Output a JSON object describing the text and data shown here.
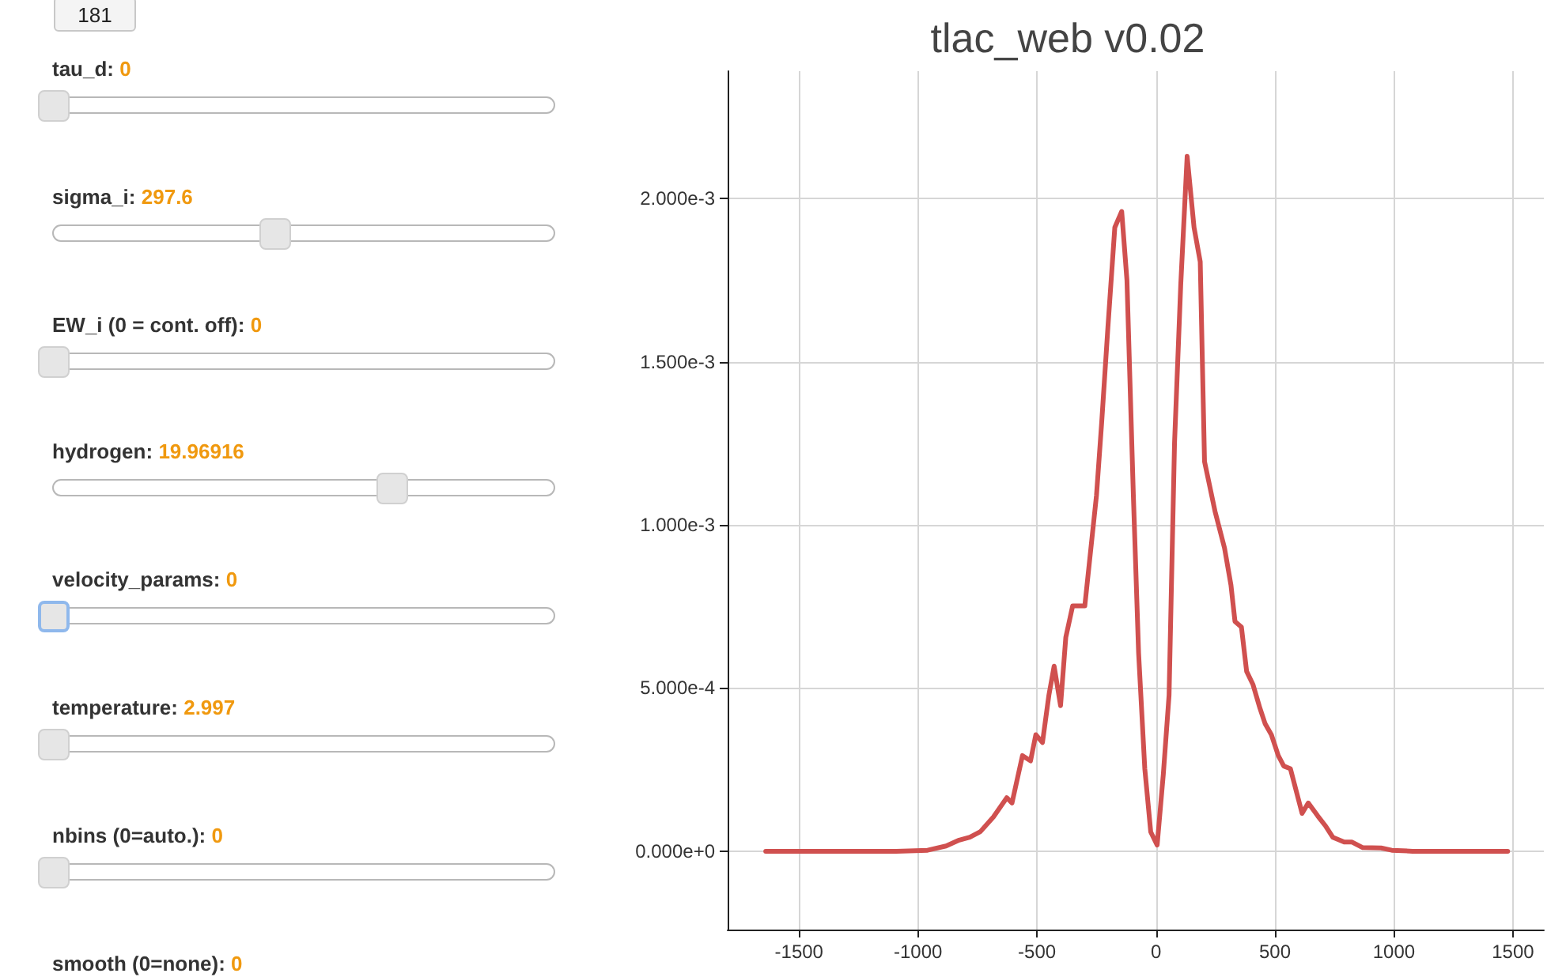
{
  "chart_data": [
    {
      "type": "other",
      "annotations": [
        "181",
        "tau_d:",
        "0",
        "sigma_i:",
        "297.6",
        "EW_i (0 = cont. off):",
        "0",
        "hydrogen:",
        "19.96916",
        "velocity_params:",
        "0",
        "temperature:",
        "2.997",
        "nbins (0=auto.):",
        "0",
        "smooth (0=none):",
        "0"
      ]
    },
    {
      "type": "line",
      "title": "tlac_web v0.02",
      "color": "#d0504f",
      "marker": "none",
      "grid": true,
      "x": [
        -1640,
        -1092,
        -960,
        -882,
        -827,
        -782,
        -738,
        -683,
        -627,
        -605,
        -561,
        -527,
        -505,
        -477,
        -450,
        -428,
        -401,
        -379,
        -350,
        -299,
        -250,
        -228,
        -202,
        -173,
        -144,
        -122,
        -95,
        -73,
        -47,
        -22,
        5,
        31,
        55,
        78,
        104,
        131,
        160,
        186,
        204,
        248,
        288,
        315,
        332,
        359,
        381,
        408,
        437,
        459,
        485,
        514,
        537,
        565,
        614,
        640,
        680,
        714,
        743,
        791,
        824,
        869,
        946,
        991,
        1079,
        1478
      ],
      "values": [
        0,
        0,
        3e-06,
        1.6e-05,
        3.4e-05,
        4.3e-05,
        6e-05,
        0.000105,
        0.000164,
        0.000148,
        0.000293,
        0.000277,
        0.000357,
        0.000333,
        0.000478,
        0.000567,
        0.000446,
        0.000655,
        0.000752,
        0.000752,
        0.00109,
        0.001315,
        0.001605,
        0.001911,
        0.00196,
        0.00175,
        0.00109,
        0.000607,
        0.000253,
        5.9e-05,
        1.9e-05,
        0.000237,
        0.000478,
        0.001251,
        0.001734,
        0.002129,
        0.001911,
        0.001806,
        0.001194,
        0.001042,
        0.000929,
        0.000816,
        0.000704,
        0.000687,
        0.000551,
        0.00051,
        0.000438,
        0.00039,
        0.000357,
        0.000293,
        0.000261,
        0.000253,
        0.000116,
        0.000148,
        0.000108,
        7.6e-05,
        4.3e-05,
        2.8e-05,
        2.8e-05,
        1.1e-05,
        1e-05,
        3e-06,
        0,
        0
      ],
      "xlim": [
        -1800,
        1630
      ],
      "xticks": [
        -1500,
        -1000,
        -500,
        0,
        500,
        1000,
        1500
      ],
      "ylim": [
        -0.00024,
        0.00239
      ],
      "yticks": [
        {
          "value": 0,
          "label": "0.000e+0"
        },
        {
          "value": 0.0005,
          "label": "5.000e-4"
        },
        {
          "value": 0.001,
          "label": "1.000e-3"
        },
        {
          "value": 0.0015,
          "label": "1.500e-3"
        },
        {
          "value": 0.002,
          "label": "2.000e-3"
        }
      ]
    }
  ]
}
